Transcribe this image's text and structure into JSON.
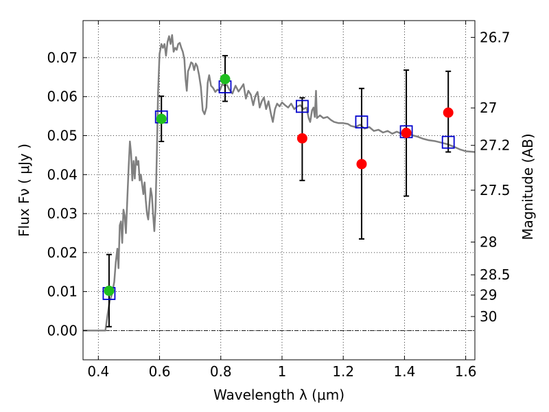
{
  "chart_data": {
    "type": "scatter",
    "xlabel": "Wavelength  λ (μm)",
    "ylabel": "Flux  Fν  ( μJy )",
    "ylabel_right": "Magnitude (AB)",
    "xlim": [
      0.35,
      1.63
    ],
    "ylim": [
      -0.0075,
      0.0795
    ],
    "grid": true,
    "x_ticks": [
      0.4,
      0.6,
      0.8,
      1.0,
      1.2,
      1.4,
      1.6
    ],
    "x_tick_labels": [
      "0.4",
      "0.6",
      "0.8",
      "1",
      "1.2",
      "1.4",
      "1.6"
    ],
    "y_ticks": [
      0.0,
      0.01,
      0.02,
      0.03,
      0.04,
      0.05,
      0.06,
      0.07
    ],
    "y_tick_labels": [
      "0.00",
      "0.01",
      "0.02",
      "0.03",
      "0.04",
      "0.05",
      "0.06",
      "0.07"
    ],
    "magnitude_ticks": [
      {
        "label": "26.7",
        "flux": 0.0752
      },
      {
        "label": "27",
        "flux": 0.0571
      },
      {
        "label": "27.2",
        "flux": 0.0475
      },
      {
        "label": "27.5",
        "flux": 0.036
      },
      {
        "label": "28",
        "flux": 0.0227
      },
      {
        "label": "28.5",
        "flux": 0.0143
      },
      {
        "label": "29",
        "flux": 0.0091
      },
      {
        "label": "30",
        "flux": 0.0036
      }
    ],
    "model_spectrum": {
      "color": "#808080",
      "points": [
        [
          0.35,
          0.0
        ],
        [
          0.38,
          0.0
        ],
        [
          0.42,
          0.0
        ],
        [
          0.423,
          0.0
        ],
        [
          0.43,
          0.004
        ],
        [
          0.437,
          0.0075
        ],
        [
          0.445,
          0.0095
        ],
        [
          0.452,
          0.0125
        ],
        [
          0.457,
          0.0175
        ],
        [
          0.462,
          0.021
        ],
        [
          0.466,
          0.016
        ],
        [
          0.47,
          0.027
        ],
        [
          0.474,
          0.028
        ],
        [
          0.478,
          0.0225
        ],
        [
          0.482,
          0.031
        ],
        [
          0.486,
          0.0295
        ],
        [
          0.49,
          0.025
        ],
        [
          0.495,
          0.0345
        ],
        [
          0.499,
          0.042
        ],
        [
          0.503,
          0.0485
        ],
        [
          0.507,
          0.0455
        ],
        [
          0.511,
          0.0385
        ],
        [
          0.515,
          0.0435
        ],
        [
          0.519,
          0.039
        ],
        [
          0.523,
          0.0445
        ],
        [
          0.527,
          0.0425
        ],
        [
          0.531,
          0.0435
        ],
        [
          0.535,
          0.0385
        ],
        [
          0.539,
          0.04
        ],
        [
          0.543,
          0.0375
        ],
        [
          0.547,
          0.035
        ],
        [
          0.551,
          0.038
        ],
        [
          0.555,
          0.0335
        ],
        [
          0.559,
          0.03
        ],
        [
          0.563,
          0.0285
        ],
        [
          0.567,
          0.0325
        ],
        [
          0.571,
          0.0365
        ],
        [
          0.575,
          0.0345
        ],
        [
          0.579,
          0.0295
        ],
        [
          0.583,
          0.0255
        ],
        [
          0.587,
          0.0315
        ],
        [
          0.591,
          0.045
        ],
        [
          0.595,
          0.061
        ],
        [
          0.6,
          0.071
        ],
        [
          0.606,
          0.0735
        ],
        [
          0.611,
          0.0725
        ],
        [
          0.616,
          0.0735
        ],
        [
          0.621,
          0.0705
        ],
        [
          0.626,
          0.074
        ],
        [
          0.631,
          0.0755
        ],
        [
          0.636,
          0.0735
        ],
        [
          0.641,
          0.0758
        ],
        [
          0.646,
          0.0715
        ],
        [
          0.651,
          0.0725
        ],
        [
          0.656,
          0.072
        ],
        [
          0.661,
          0.0735
        ],
        [
          0.666,
          0.0738
        ],
        [
          0.671,
          0.0725
        ],
        [
          0.676,
          0.0715
        ],
        [
          0.681,
          0.0695
        ],
        [
          0.685,
          0.0645
        ],
        [
          0.689,
          0.0615
        ],
        [
          0.693,
          0.0665
        ],
        [
          0.698,
          0.0675
        ],
        [
          0.703,
          0.0688
        ],
        [
          0.708,
          0.0685
        ],
        [
          0.713,
          0.0668
        ],
        [
          0.718,
          0.0685
        ],
        [
          0.723,
          0.0678
        ],
        [
          0.729,
          0.0655
        ],
        [
          0.735,
          0.0625
        ],
        [
          0.741,
          0.0565
        ],
        [
          0.747,
          0.0555
        ],
        [
          0.753,
          0.0572
        ],
        [
          0.757,
          0.0635
        ],
        [
          0.762,
          0.0655
        ],
        [
          0.768,
          0.0628
        ],
        [
          0.775,
          0.0622
        ],
        [
          0.782,
          0.0612
        ],
        [
          0.789,
          0.0618
        ],
        [
          0.796,
          0.0615
        ],
        [
          0.805,
          0.0632
        ],
        [
          0.812,
          0.0628
        ],
        [
          0.82,
          0.063
        ],
        [
          0.828,
          0.0618
        ],
        [
          0.838,
          0.0608
        ],
        [
          0.848,
          0.0628
        ],
        [
          0.858,
          0.0613
        ],
        [
          0.866,
          0.0622
        ],
        [
          0.874,
          0.0632
        ],
        [
          0.882,
          0.0595
        ],
        [
          0.89,
          0.0615
        ],
        [
          0.898,
          0.0605
        ],
        [
          0.906,
          0.0578
        ],
        [
          0.913,
          0.0602
        ],
        [
          0.92,
          0.0612
        ],
        [
          0.927,
          0.0572
        ],
        [
          0.934,
          0.0588
        ],
        [
          0.941,
          0.0598
        ],
        [
          0.948,
          0.0568
        ],
        [
          0.956,
          0.0588
        ],
        [
          0.964,
          0.0555
        ],
        [
          0.97,
          0.0535
        ],
        [
          0.977,
          0.0568
        ],
        [
          0.984,
          0.0582
        ],
        [
          0.992,
          0.0575
        ],
        [
          1.0,
          0.0585
        ],
        [
          1.01,
          0.0578
        ],
        [
          1.02,
          0.0572
        ],
        [
          1.03,
          0.0582
        ],
        [
          1.04,
          0.0568
        ],
        [
          1.05,
          0.0575
        ],
        [
          1.06,
          0.0578
        ],
        [
          1.07,
          0.0568
        ],
        [
          1.08,
          0.0572
        ],
        [
          1.087,
          0.0545
        ],
        [
          1.092,
          0.0535
        ],
        [
          1.098,
          0.0565
        ],
        [
          1.103,
          0.0572
        ],
        [
          1.107,
          0.0548
        ],
        [
          1.111,
          0.0615
        ],
        [
          1.114,
          0.0545
        ],
        [
          1.124,
          0.0552
        ],
        [
          1.135,
          0.0545
        ],
        [
          1.148,
          0.0548
        ],
        [
          1.16,
          0.054
        ],
        [
          1.17,
          0.0535
        ],
        [
          1.185,
          0.0532
        ],
        [
          1.2,
          0.0532
        ],
        [
          1.215,
          0.053
        ],
        [
          1.225,
          0.0525
        ],
        [
          1.24,
          0.0522
        ],
        [
          1.255,
          0.0528
        ],
        [
          1.27,
          0.0518
        ],
        [
          1.285,
          0.0522
        ],
        [
          1.3,
          0.0512
        ],
        [
          1.315,
          0.0515
        ],
        [
          1.33,
          0.0508
        ],
        [
          1.345,
          0.0512
        ],
        [
          1.36,
          0.0505
        ],
        [
          1.375,
          0.051
        ],
        [
          1.39,
          0.0505
        ],
        [
          1.405,
          0.0502
        ],
        [
          1.42,
          0.0502
        ],
        [
          1.44,
          0.0498
        ],
        [
          1.46,
          0.0492
        ],
        [
          1.48,
          0.0488
        ],
        [
          1.5,
          0.0486
        ],
        [
          1.52,
          0.0482
        ],
        [
          1.54,
          0.0478
        ],
        [
          1.56,
          0.0472
        ],
        [
          1.58,
          0.0465
        ],
        [
          1.6,
          0.046
        ],
        [
          1.63,
          0.0458
        ]
      ]
    },
    "series": [
      {
        "marker": "open-square",
        "color": "#0000cc",
        "points": [
          {
            "x": 0.435,
            "y": 0.0095
          },
          {
            "x": 0.606,
            "y": 0.0548
          },
          {
            "x": 0.814,
            "y": 0.0625
          },
          {
            "x": 1.066,
            "y": 0.0575
          },
          {
            "x": 1.26,
            "y": 0.0535
          },
          {
            "x": 1.406,
            "y": 0.051
          },
          {
            "x": 1.543,
            "y": 0.0483
          }
        ]
      },
      {
        "marker": "filled-circle",
        "color": "#1fbf1f",
        "points": [
          {
            "x": 0.435,
            "y": 0.0102,
            "err_low": 0.001,
            "err_high": 0.0195
          },
          {
            "x": 0.606,
            "y": 0.0543,
            "err_low": 0.0485,
            "err_high": 0.0601
          },
          {
            "x": 0.814,
            "y": 0.0645,
            "err_low": 0.0588,
            "err_high": 0.0705
          }
        ]
      },
      {
        "marker": "filled-circle",
        "color": "#ff0000",
        "points": [
          {
            "x": 1.066,
            "y": 0.0493,
            "err_low": 0.0385,
            "err_high": 0.0597
          },
          {
            "x": 1.26,
            "y": 0.0427,
            "err_low": 0.0235,
            "err_high": 0.0621
          },
          {
            "x": 1.406,
            "y": 0.0507,
            "err_low": 0.0345,
            "err_high": 0.0668
          },
          {
            "x": 1.543,
            "y": 0.0559,
            "err_low": 0.0458,
            "err_high": 0.0665
          }
        ]
      }
    ]
  }
}
